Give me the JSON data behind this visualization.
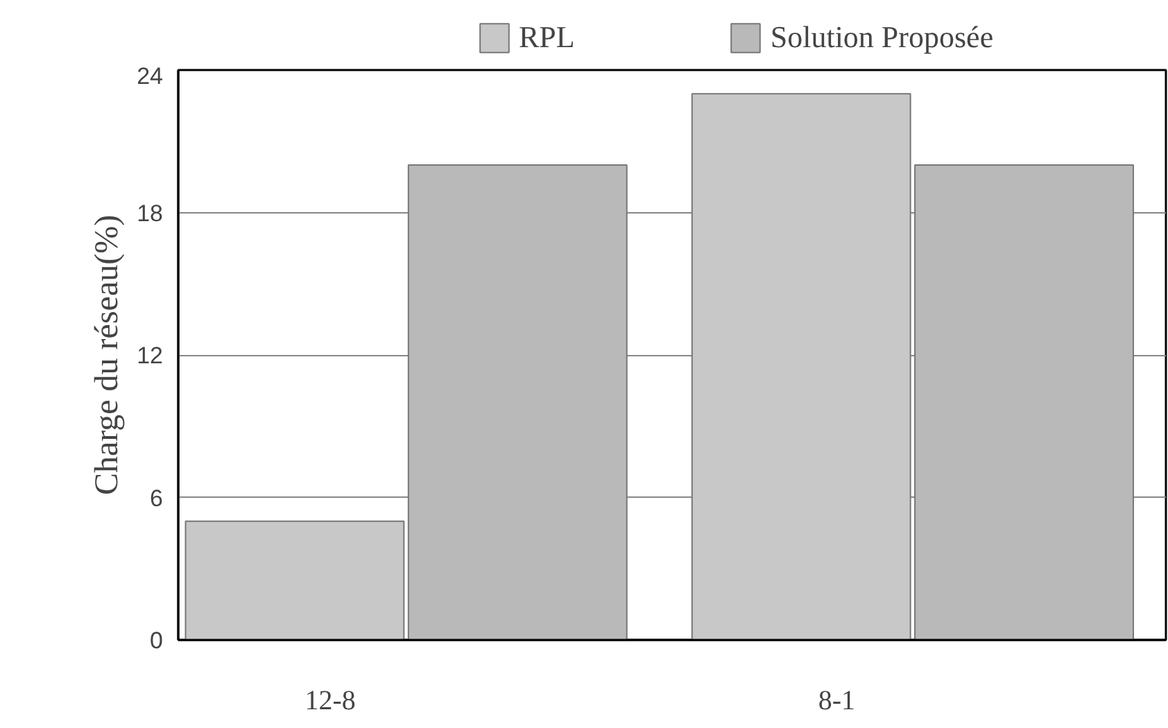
{
  "chart_data": {
    "type": "bar",
    "ylabel": "Charge du réseau(%)",
    "categories": [
      "12-8",
      "8-1"
    ],
    "series": [
      {
        "name": "RPL",
        "color": "#c8c8c8",
        "values": [
          5,
          23
        ]
      },
      {
        "name": "Solution Proposée",
        "color": "#b9b9b9",
        "values": [
          20,
          20
        ]
      }
    ],
    "ylim": [
      0,
      24
    ],
    "yticks": [
      0,
      6,
      12,
      18,
      24
    ],
    "grid": "y",
    "legend": "top"
  }
}
